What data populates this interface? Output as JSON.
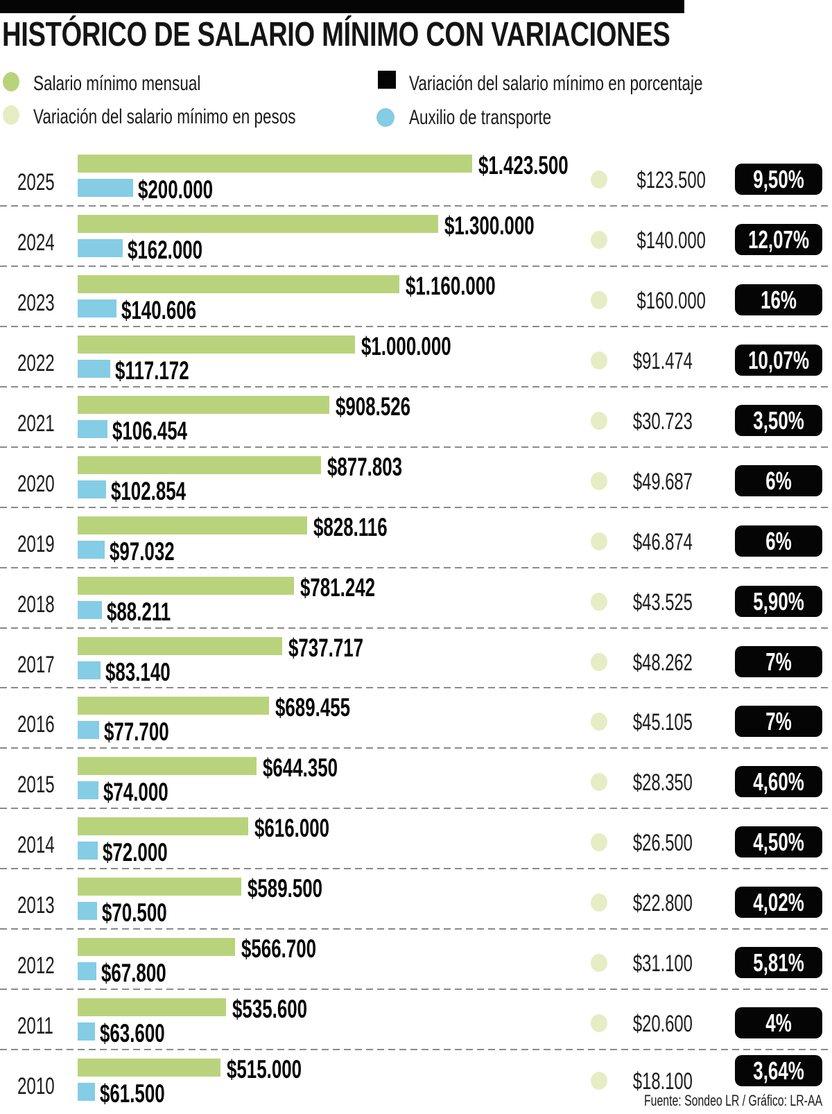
{
  "header": {
    "title": "HISTÓRICO DE SALARIO MÍNIMO CON VARIACIONES"
  },
  "legend": [
    {
      "label": "Salario mínimo mensual",
      "swatch": "green-dot",
      "color": "#b9d37c"
    },
    {
      "label": "Variación del salario mínimo en pesos",
      "swatch": "pale-green-dot",
      "color": "#e6edc4"
    },
    {
      "label": "Variación del salario mínimo en porcentaje",
      "swatch": "black-square",
      "color": "#050505"
    },
    {
      "label": "Auxilio de transporte",
      "swatch": "blue-dot",
      "color": "#85cce5"
    }
  ],
  "footer": {
    "credit": "Fuente: Sondeo LR / Gráfico: LR-AA"
  },
  "chart_data": {
    "type": "bar",
    "orientation": "horizontal",
    "title": "HISTÓRICO DE SALARIO MÍNIMO CON VARIACIONES",
    "categories": [
      "2025",
      "2024",
      "2023",
      "2022",
      "2021",
      "2020",
      "2019",
      "2018",
      "2017",
      "2016",
      "2015",
      "2014",
      "2013",
      "2012",
      "2011",
      "2010"
    ],
    "series": [
      {
        "name": "Salario mínimo mensual",
        "color": "#b9d37c",
        "values": [
          1423500,
          1300000,
          1160000,
          1000000,
          908526,
          877803,
          828116,
          781242,
          737717,
          689455,
          644350,
          616000,
          589500,
          566700,
          535600,
          515000
        ],
        "labels": [
          "$1.423.500",
          "$1.300.000",
          "$1.160.000",
          "$1.000.000",
          "$908.526",
          "$877.803",
          "$828.116",
          "$781.242",
          "$737.717",
          "$689.455",
          "$644.350",
          "$616.000",
          "$589.500",
          "$566.700",
          "$535.600",
          "$515.000"
        ]
      },
      {
        "name": "Auxilio de transporte",
        "color": "#85cce5",
        "values": [
          200000,
          162000,
          140606,
          117172,
          106454,
          102854,
          97032,
          88211,
          83140,
          77700,
          74000,
          72000,
          70500,
          67800,
          63600,
          61500
        ],
        "labels": [
          "$200.000",
          "$162.000",
          "$140.606",
          "$117.172",
          "$106.454",
          "$102.854",
          "$97.032",
          "$88.211",
          "$83.140",
          "$77.700",
          "$74.000",
          "$72.000",
          "$70.500",
          "$67.800",
          "$63.600",
          "$61.500"
        ]
      },
      {
        "name": "Variación del salario mínimo en pesos",
        "color": "#e6edc4",
        "values": [
          123500,
          140000,
          160000,
          91474,
          30723,
          49687,
          46874,
          43525,
          48262,
          45105,
          28350,
          26500,
          22800,
          31100,
          20600,
          18100
        ],
        "labels": [
          "$123.500",
          "$140.000",
          "$160.000",
          "$91.474",
          "$30.723",
          "$49.687",
          "$46.874",
          "$43.525",
          "$48.262",
          "$45.105",
          "$28.350",
          "$26.500",
          "$22.800",
          "$31.100",
          "$20.600",
          "$18.100"
        ]
      },
      {
        "name": "Variación del salario mínimo en porcentaje",
        "color": "#050505",
        "values": [
          9.5,
          12.07,
          16,
          10.07,
          3.5,
          6,
          6,
          5.9,
          7,
          7,
          4.6,
          4.5,
          4.02,
          5.81,
          4,
          3.64
        ],
        "labels": [
          "9,50%",
          "12,07%",
          "16%",
          "10,07%",
          "3,50%",
          "6%",
          "6%",
          "5,90%",
          "7%",
          "7%",
          "4,60%",
          "4,50%",
          "4,02%",
          "5,81%",
          "4%",
          "3,64%"
        ]
      }
    ],
    "x_axis": {
      "min": 0,
      "max": 1423500,
      "visible": false
    },
    "grid": false,
    "legend_position": "top",
    "row_separator": "dashed"
  }
}
